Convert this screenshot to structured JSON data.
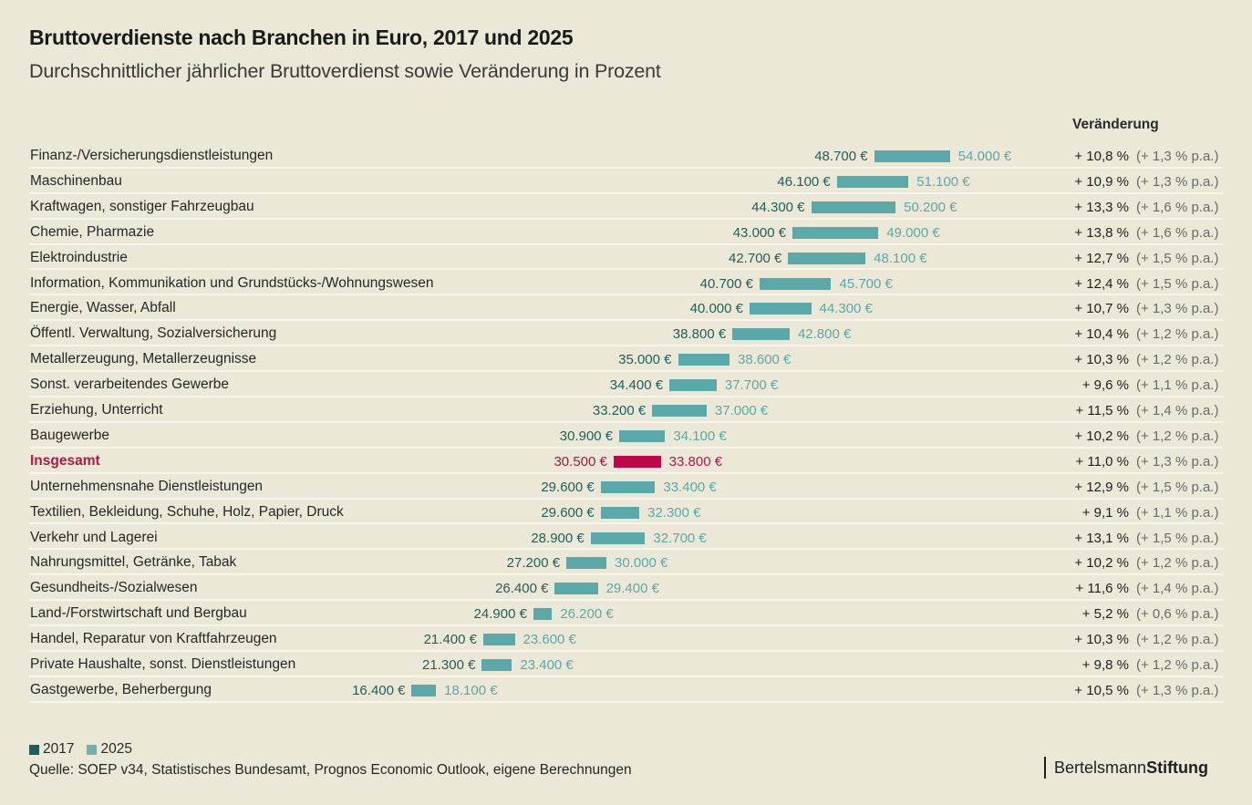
{
  "header": {
    "title": "Bruttoverdienste nach Branchen in Euro, 2017 und 2025",
    "subtitle": "Durchschnittlicher jährlicher Bruttoverdienst sowie Veränderung in Prozent",
    "change_column_header": "Veränderung"
  },
  "colors": {
    "background": "#ebe8d8",
    "bar_2017_to_2025": "#5aa8a9",
    "label_2017": "#1f5f5c",
    "highlight": "#c0064a",
    "legend_2017": "#1b5e5c",
    "legend_2025": "#6fb0b0"
  },
  "chart_data": {
    "type": "bar",
    "title": "Bruttoverdienste nach Branchen in Euro, 2017 und 2025",
    "subtitle": "Durchschnittlicher jährlicher Bruttoverdienst sowie Veränderung in Prozent",
    "xlabel": "",
    "ylabel": "",
    "unit": "€",
    "legend": [
      "2017",
      "2025"
    ],
    "legend_position": "bottom-left",
    "grid": false,
    "rows": [
      {
        "category": "Finanz-/Versicherungsdienstleistungen",
        "v2017": 48700,
        "v2025": 54000,
        "label2017": "48.700 €",
        "label2025": "54.000 €",
        "change": "+ 10,8 %",
        "change_pa": "(+ 1,3 % p.a.)"
      },
      {
        "category": "Maschinenbau",
        "v2017": 46100,
        "v2025": 51100,
        "label2017": "46.100 €",
        "label2025": "51.100 €",
        "change": "+ 10,9 %",
        "change_pa": "(+ 1,3 % p.a.)"
      },
      {
        "category": "Kraftwagen, sonstiger Fahrzeugbau",
        "v2017": 44300,
        "v2025": 50200,
        "label2017": "44.300 €",
        "label2025": "50.200 €",
        "change": "+ 13,3 %",
        "change_pa": "(+ 1,6 % p.a.)"
      },
      {
        "category": "Chemie, Pharmazie",
        "v2017": 43000,
        "v2025": 49000,
        "label2017": "43.000 €",
        "label2025": "49.000 €",
        "change": "+ 13,8 %",
        "change_pa": "(+ 1,6 % p.a.)"
      },
      {
        "category": "Elektroindustrie",
        "v2017": 42700,
        "v2025": 48100,
        "label2017": "42.700 €",
        "label2025": "48.100 €",
        "change": "+ 12,7 %",
        "change_pa": "(+ 1,5 % p.a.)"
      },
      {
        "category": "Information, Kommunikation und Grundstücks-/Wohnungswesen",
        "v2017": 40700,
        "v2025": 45700,
        "label2017": "40.700 €",
        "label2025": "45.700 €",
        "change": "+ 12,4 %",
        "change_pa": "(+ 1,5 % p.a.)"
      },
      {
        "category": "Energie, Wasser, Abfall",
        "v2017": 40000,
        "v2025": 44300,
        "label2017": "40.000 €",
        "label2025": "44.300 €",
        "change": "+ 10,7 %",
        "change_pa": "(+ 1,3 % p.a.)"
      },
      {
        "category": "Öffentl. Verwaltung, Sozialversicherung",
        "v2017": 38800,
        "v2025": 42800,
        "label2017": "38.800 €",
        "label2025": "42.800 €",
        "change": "+ 10,4 %",
        "change_pa": "(+ 1,2 % p.a.)"
      },
      {
        "category": "Metallerzeugung, Metallerzeugnisse",
        "v2017": 35000,
        "v2025": 38600,
        "label2017": "35.000 €",
        "label2025": "38.600 €",
        "change": "+ 10,3 %",
        "change_pa": "(+ 1,2 % p.a.)"
      },
      {
        "category": "Sonst. verarbeitendes Gewerbe",
        "v2017": 34400,
        "v2025": 37700,
        "label2017": "34.400 €",
        "label2025": "37.700 €",
        "change": "+ 9,6 %",
        "change_pa": "(+ 1,1 % p.a.)"
      },
      {
        "category": "Erziehung, Unterricht",
        "v2017": 33200,
        "v2025": 37000,
        "label2017": "33.200 €",
        "label2025": "37.000 €",
        "change": "+ 11,5 %",
        "change_pa": "(+ 1,4 % p.a.)"
      },
      {
        "category": "Baugewerbe",
        "v2017": 30900,
        "v2025": 34100,
        "label2017": "30.900 €",
        "label2025": "34.100 €",
        "change": "+ 10,2 %",
        "change_pa": "(+ 1,2 % p.a.)"
      },
      {
        "category": "Insgesamt",
        "v2017": 30500,
        "v2025": 33800,
        "label2017": "30.500 €",
        "label2025": "33.800 €",
        "change": "+ 11,0 %",
        "change_pa": "(+ 1,3 % p.a.)",
        "highlight": true
      },
      {
        "category": "Unternehmensnahe Dienstleistungen",
        "v2017": 29600,
        "v2025": 33400,
        "label2017": "29.600 €",
        "label2025": "33.400 €",
        "change": "+ 12,9 %",
        "change_pa": "(+ 1,5 % p.a.)"
      },
      {
        "category": "Textilien, Bekleidung, Schuhe, Holz, Papier, Druck",
        "v2017": 29600,
        "v2025": 32300,
        "label2017": "29.600 €",
        "label2025": "32.300 €",
        "change": "+ 9,1 %",
        "change_pa": "(+ 1,1 % p.a.)"
      },
      {
        "category": "Verkehr und Lagerei",
        "v2017": 28900,
        "v2025": 32700,
        "label2017": "28.900 €",
        "label2025": "32.700 €",
        "change": "+ 13,1 %",
        "change_pa": "(+ 1,5 % p.a.)"
      },
      {
        "category": "Nahrungsmittel, Getränke, Tabak",
        "v2017": 27200,
        "v2025": 30000,
        "label2017": "27.200 €",
        "label2025": "30.000 €",
        "change": "+ 10,2 %",
        "change_pa": "(+ 1,2 % p.a.)"
      },
      {
        "category": "Gesundheits-/Sozialwesen",
        "v2017": 26400,
        "v2025": 29400,
        "label2017": "26.400 €",
        "label2025": "29.400 €",
        "change": "+ 11,6 %",
        "change_pa": "(+ 1,4 % p.a.)"
      },
      {
        "category": "Land-/Forstwirtschaft und Bergbau",
        "v2017": 24900,
        "v2025": 26200,
        "label2017": "24.900 €",
        "label2025": "26.200 €",
        "change": "+ 5,2 %",
        "change_pa": "(+ 0,6 % p.a.)"
      },
      {
        "category": "Handel, Reparatur von Kraftfahrzeugen",
        "v2017": 21400,
        "v2025": 23600,
        "label2017": "21.400 €",
        "label2025": "23.600 €",
        "change": "+ 10,3 %",
        "change_pa": "(+ 1,2 % p.a.)"
      },
      {
        "category": "Private Haushalte, sonst. Dienstleistungen",
        "v2017": 21300,
        "v2025": 23400,
        "label2017": "21.300 €",
        "label2025": "23.400 €",
        "change": "+ 9,8 %",
        "change_pa": "(+ 1,2 % p.a.)"
      },
      {
        "category": "Gastgewerbe, Beherbergung",
        "v2017": 16400,
        "v2025": 18100,
        "label2017": "16.400 €",
        "label2025": "18.100 €",
        "change": "+ 10,5 %",
        "change_pa": "(+ 1,3 % p.a.)"
      }
    ]
  },
  "legend": {
    "items": [
      {
        "label": "2017",
        "color": "#1b5e5c"
      },
      {
        "label": "2025",
        "color": "#6fb0b0"
      }
    ]
  },
  "footer": {
    "source": "Quelle: SOEP v34, Statistisches Bundesamt, Prognos Economic Outlook, eigene Berechnungen",
    "logo_regular": "Bertelsmann",
    "logo_bold": "Stiftung"
  }
}
